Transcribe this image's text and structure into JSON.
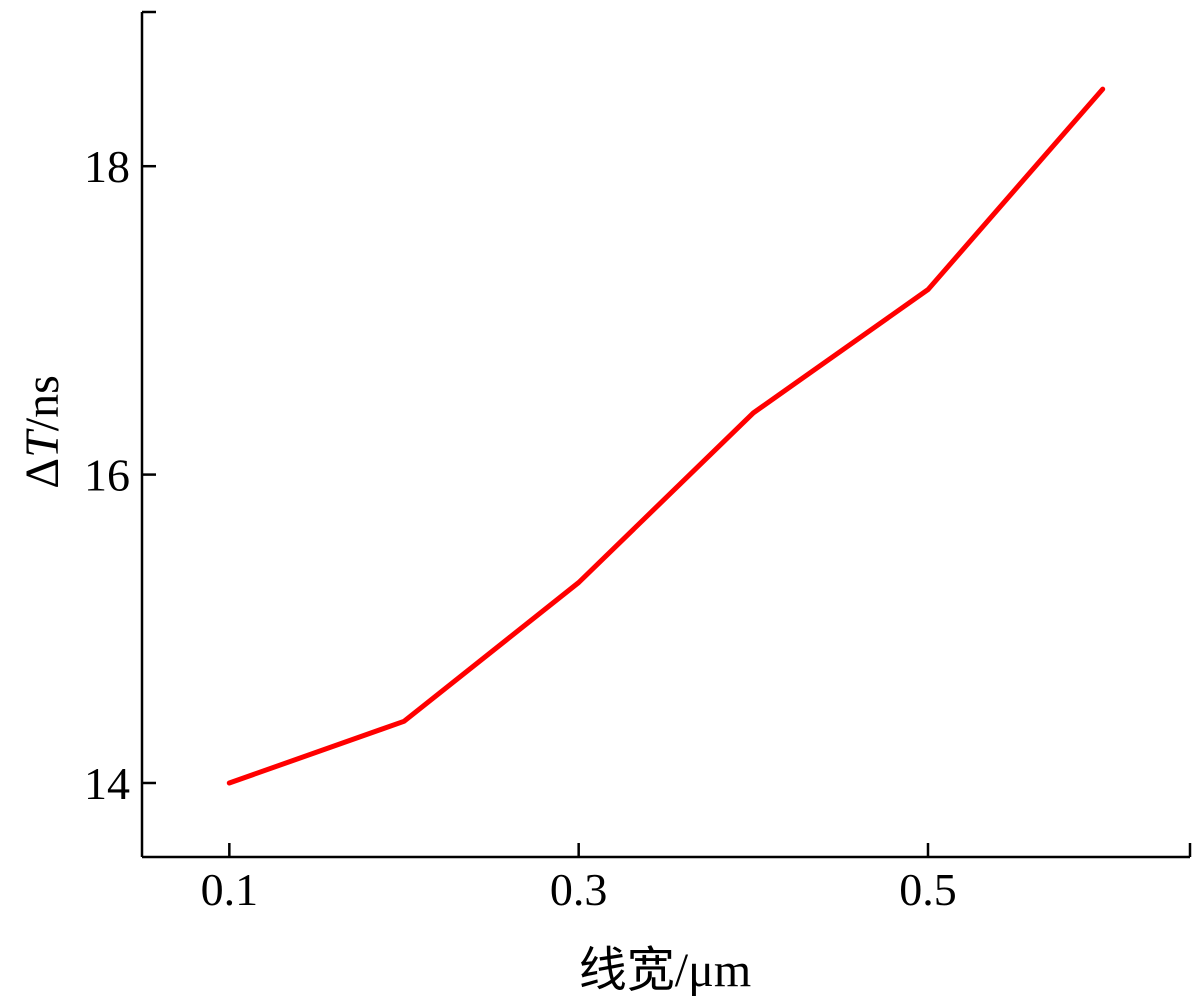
{
  "chart_data": {
    "type": "line",
    "xlabel": "线宽/μm",
    "ylabel_symbol": "Δ",
    "ylabel_var": "T",
    "ylabel_unit": "/ns",
    "x_ticks": [
      "0.1",
      "0.3",
      "0.5"
    ],
    "y_ticks": [
      "14",
      "16",
      "18"
    ],
    "xlim": [
      0.05,
      0.65
    ],
    "ylim": [
      13.52,
      19.0
    ],
    "grid": false,
    "series": [
      {
        "color": "#ff0000",
        "x": [
          0.1,
          0.2,
          0.3,
          0.4,
          0.5,
          0.6
        ],
        "y": [
          14.0,
          14.4,
          15.3,
          16.4,
          17.2,
          18.5
        ]
      }
    ]
  }
}
